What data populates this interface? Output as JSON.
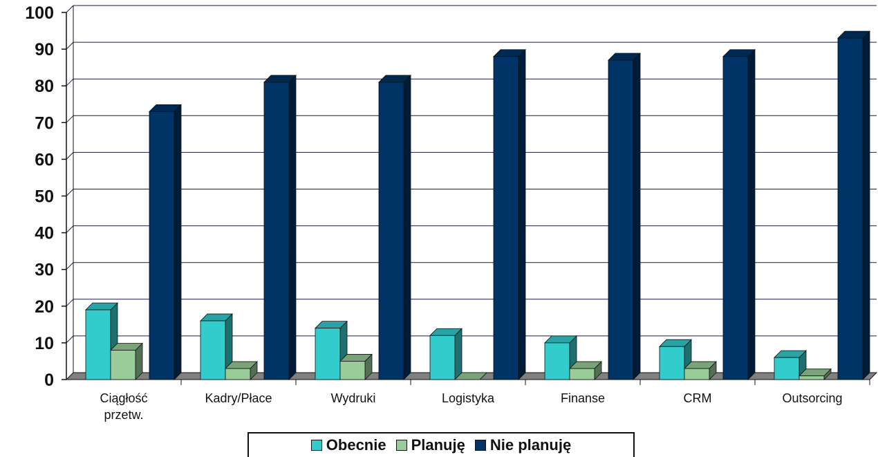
{
  "chart_data": {
    "type": "bar",
    "categories": [
      [
        "Ciągłość",
        "przetw."
      ],
      [
        "Kadry/Płace"
      ],
      [
        "Wydruki"
      ],
      [
        "Logistyka"
      ],
      [
        "Finanse"
      ],
      [
        "CRM"
      ],
      [
        "Outsorcing"
      ]
    ],
    "series": [
      {
        "name": "Obecnie",
        "color": "#33cccc",
        "values": [
          19,
          16,
          14,
          12,
          10,
          9,
          6
        ]
      },
      {
        "name": "Planuję",
        "color": "#99cc99",
        "values": [
          8,
          3,
          5,
          0,
          3,
          3,
          1
        ]
      },
      {
        "name": "Nie planuję",
        "color": "#003366",
        "values": [
          73,
          81,
          81,
          88,
          87,
          88,
          93
        ]
      }
    ],
    "ylim": [
      0,
      100
    ],
    "yticks": [
      "0",
      "10",
      "20",
      "30",
      "40",
      "50",
      "60",
      "70",
      "80",
      "90",
      "100"
    ],
    "grid": true,
    "three_d": true,
    "legend_position": "bottom"
  }
}
